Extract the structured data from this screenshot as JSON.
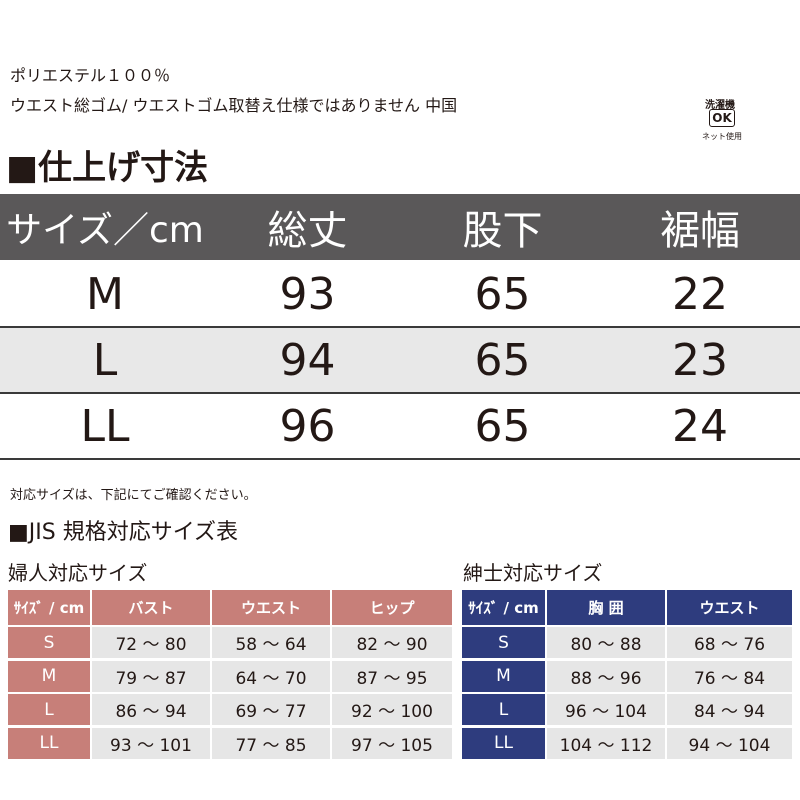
{
  "header": {
    "lines": [
      "ポリエステル１００％",
      "ウエスト総ゴム/ ウエストゴム取替え仕様ではありません 中国"
    ]
  },
  "care_label": {
    "top": "洗濯機",
    "mark": "OK",
    "bottom": "ネット使用"
  },
  "finish_table": {
    "title": "■仕上げ寸法",
    "headers": [
      "サイズ／cm",
      "総丈",
      "股下",
      "裾幅"
    ],
    "rows": [
      [
        "M",
        "93",
        "65",
        "22"
      ],
      [
        "L",
        "94",
        "65",
        "23"
      ],
      [
        "LL",
        "96",
        "65",
        "24"
      ]
    ]
  },
  "note": "対応サイズは、下記にてご確認ください。",
  "jis_title": "■JIS 規格対応サイズ表",
  "women": {
    "title": "婦人対応サイズ",
    "headers": [
      "ｻｲｽﾞ / cm",
      "バスト",
      "ウエスト",
      "ヒップ"
    ],
    "rows": [
      [
        "S",
        "72 〜 80",
        "58 〜 64",
        "82 〜 90"
      ],
      [
        "M",
        "79 〜 87",
        "64 〜 70",
        "87 〜 95"
      ],
      [
        "L",
        "86 〜 94",
        "69 〜 77",
        "92 〜 100"
      ],
      [
        "LL",
        "93 〜 101",
        "77 〜 85",
        "97 〜 105"
      ]
    ]
  },
  "men": {
    "title": "紳士対応サイズ",
    "headers": [
      "ｻｲｽﾞ / cm",
      "胸 囲",
      "ウエスト"
    ],
    "rows": [
      [
        "S",
        "80 〜 88",
        "68 〜 76"
      ],
      [
        "M",
        "88 〜 96",
        "76 〜 84"
      ],
      [
        "L",
        "96 〜 104",
        "84 〜 94"
      ],
      [
        "LL",
        "104 〜 112",
        "94 〜 104"
      ]
    ]
  }
}
